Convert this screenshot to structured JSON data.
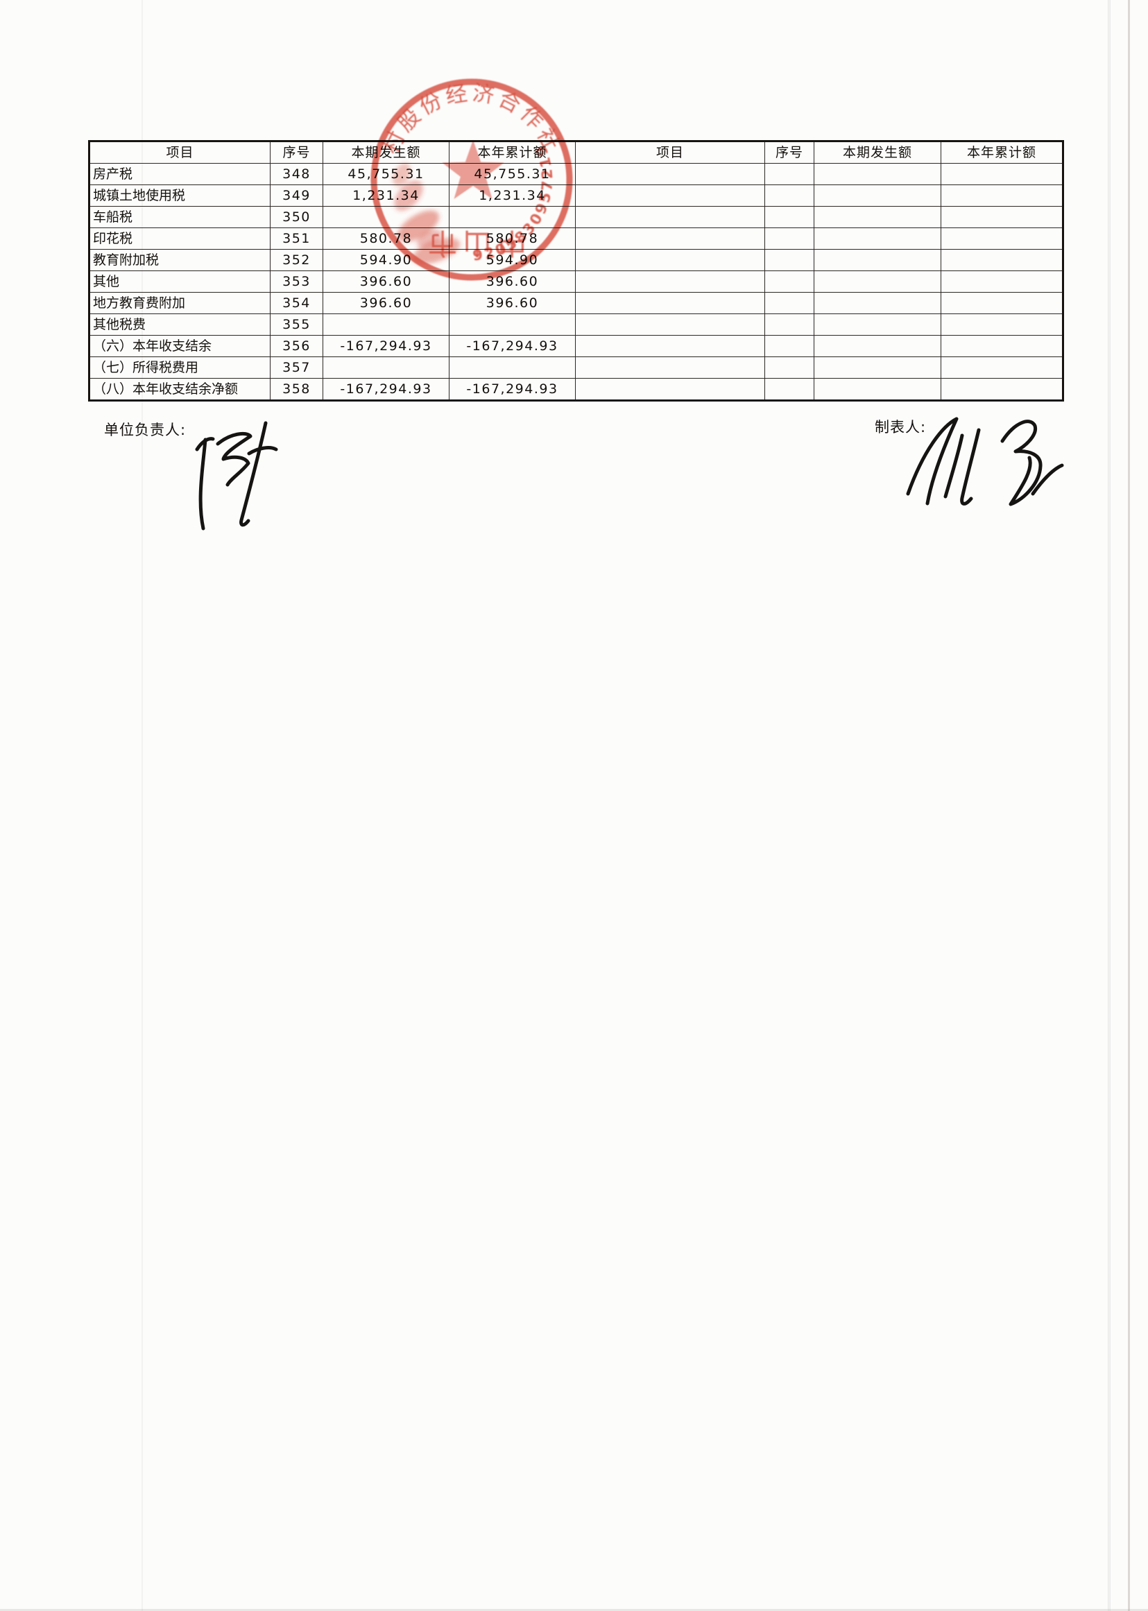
{
  "table": {
    "headers": [
      "项目",
      "序号",
      "本期发生额",
      "本年累计额",
      "项目",
      "序号",
      "本期发生额",
      "本年累计额"
    ],
    "rows": [
      {
        "item": "房产税",
        "no": "348",
        "current": "45,755.31",
        "ytd": "45,755.31",
        "indent": 1
      },
      {
        "item": "城镇土地使用税",
        "no": "349",
        "current": "1,231.34",
        "ytd": "1,231.34",
        "indent": 1
      },
      {
        "item": "车船税",
        "no": "350",
        "current": "",
        "ytd": "",
        "indent": 1
      },
      {
        "item": "印花税",
        "no": "351",
        "current": "580.78",
        "ytd": "580.78",
        "indent": 1
      },
      {
        "item": "教育附加税",
        "no": "352",
        "current": "594.90",
        "ytd": "594.90",
        "indent": 1
      },
      {
        "item": "其他",
        "no": "353",
        "current": "396.60",
        "ytd": "396.60",
        "indent": 1
      },
      {
        "item": "地方教育费附加",
        "no": "354",
        "current": "396.60",
        "ytd": "396.60",
        "indent": 2
      },
      {
        "item": "其他税费",
        "no": "355",
        "current": "",
        "ytd": "",
        "indent": 2
      },
      {
        "item": "（六）本年收支结余",
        "no": "356",
        "current": "-167,294.93",
        "ytd": "-167,294.93",
        "indent": 0
      },
      {
        "item": "（七）所得税费用",
        "no": "357",
        "current": "",
        "ytd": "",
        "indent": 0
      },
      {
        "item": "（八）本年收支结余净额",
        "no": "358",
        "current": "-167,294.93",
        "ytd": "-167,294.93",
        "indent": 0
      }
    ],
    "right_rows_empty": true
  },
  "footer": {
    "unit_head_label": "单位负责人:",
    "preparer_label": "制表人:"
  },
  "stamp": {
    "arc_text_top": "村股份经济合作社",
    "arc_text_bottom": "中山市",
    "serial_digits": "9205830957219",
    "color": "#d6402f"
  }
}
